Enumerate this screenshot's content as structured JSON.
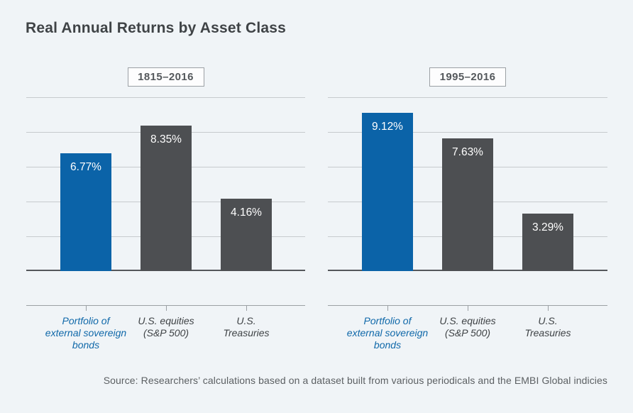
{
  "page": {
    "title": "Real Annual Returns by Asset Class",
    "source": "Source: Researchers’ calculations based on a dataset built from various periodicals and the EMBI Global indicies",
    "background": "#f0f4f7"
  },
  "colors": {
    "bond_blue": "#0b63a8",
    "bar_gray": "#4d4f52",
    "gridline": "#c7cbce",
    "baseline": "#54575b",
    "axis": "#9ba0a4",
    "title_text": "#3f4346",
    "category_gray": "#3e4245",
    "category_blue": "#0f68a9",
    "value_label_text": "#ffffff",
    "source_text": "#5c6063"
  },
  "chart_data": [
    {
      "type": "bar",
      "title": "1815–2016",
      "categories": [
        "Portfolio of external sovereign bonds",
        "U.S. equities (S&P 500)",
        "U.S. Treasuries"
      ],
      "category_lines": [
        [
          "Portfolio of",
          "external sovereign",
          "bonds"
        ],
        [
          "U.S. equities",
          "(S&P 500)"
        ],
        [
          "U.S.",
          "Treasuries"
        ]
      ],
      "category_colors": [
        "#0f68a9",
        "#3e4245",
        "#3e4245"
      ],
      "values": [
        6.77,
        8.35,
        4.16
      ],
      "value_labels": [
        "6.77%",
        "8.35%",
        "4.16%"
      ],
      "bar_colors": [
        "#0b63a8",
        "#4d4f52",
        "#4d4f52"
      ],
      "xlabel": "",
      "ylabel": "",
      "ylim": [
        0,
        10
      ],
      "gridline_step": 2,
      "grid": true,
      "legend_position": "none",
      "y_tick_labels_shown": false
    },
    {
      "type": "bar",
      "title": "1995–2016",
      "categories": [
        "Portfolio of external sovereign bonds",
        "U.S. equities (S&P 500)",
        "U.S. Treasuries"
      ],
      "category_lines": [
        [
          "Portfolio of",
          "external sovereign",
          "bonds"
        ],
        [
          "U.S. equities",
          "(S&P 500)"
        ],
        [
          "U.S.",
          "Treasuries"
        ]
      ],
      "category_colors": [
        "#0f68a9",
        "#3e4245",
        "#3e4245"
      ],
      "values": [
        9.12,
        7.63,
        3.29
      ],
      "value_labels": [
        "9.12%",
        "7.63%",
        "3.29%"
      ],
      "bar_colors": [
        "#0b63a8",
        "#4d4f52",
        "#4d4f52"
      ],
      "xlabel": "",
      "ylabel": "",
      "ylim": [
        0,
        10
      ],
      "gridline_step": 2,
      "grid": true,
      "legend_position": "none",
      "y_tick_labels_shown": false
    }
  ]
}
